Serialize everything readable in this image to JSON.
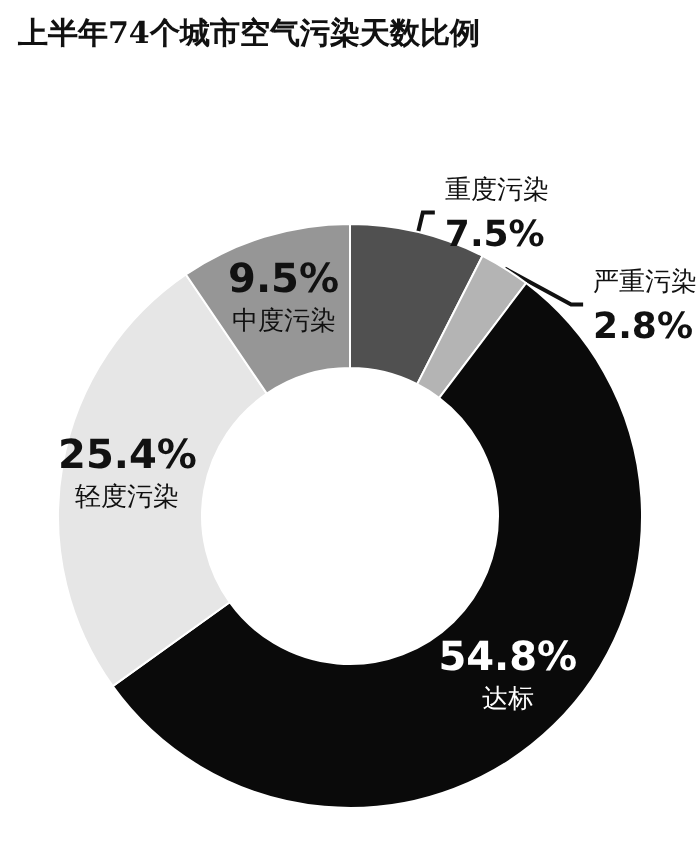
{
  "chart_data": {
    "type": "donut",
    "title": "上半年74个城市空气污染天数比例",
    "categories": [
      "重度污染",
      "严重污染",
      "达标",
      "轻度污染",
      "中度污染"
    ],
    "values": [
      7.5,
      2.8,
      54.8,
      25.4,
      9.5
    ],
    "value_labels": [
      "7.5%",
      "2.8%",
      "54.8%",
      "25.4%",
      "9.5%"
    ],
    "colors": [
      "#505050",
      "#b4b4b4",
      "#0a0a0a",
      "#e6e6e6",
      "#969696"
    ],
    "legend": false
  }
}
